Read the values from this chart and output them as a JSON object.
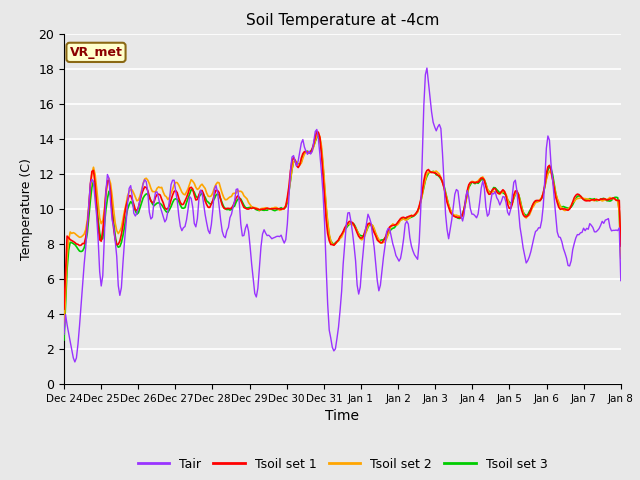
{
  "title": "Soil Temperature at -4cm",
  "xlabel": "Time",
  "ylabel": "Temperature (C)",
  "ylim": [
    0,
    20
  ],
  "annotation_text": "VR_met",
  "annotation_color": "#8B0000",
  "annotation_bg": "#FFFFCC",
  "annotation_border": "#8B6914",
  "bg_color": "#E8E8E8",
  "legend_entries": [
    "Tair",
    "Tsoil set 1",
    "Tsoil set 2",
    "Tsoil set 3"
  ],
  "line_colors": [
    "#9933FF",
    "#FF0000",
    "#FFA500",
    "#00CC00"
  ],
  "x_tick_labels": [
    "Dec 24",
    "Dec 25",
    "Dec 26",
    "Dec 27",
    "Dec 28",
    "Dec 29",
    "Dec 30",
    "Dec 31",
    "Jan 1",
    "Jan 2",
    "Jan 3",
    "Jan 4",
    "Jan 5",
    "Jan 6",
    "Jan 7",
    "Jan 8"
  ],
  "yticks": [
    0,
    2,
    4,
    6,
    8,
    10,
    12,
    14,
    16,
    18,
    20
  ],
  "n_days": 15,
  "pts_per_day": 24
}
